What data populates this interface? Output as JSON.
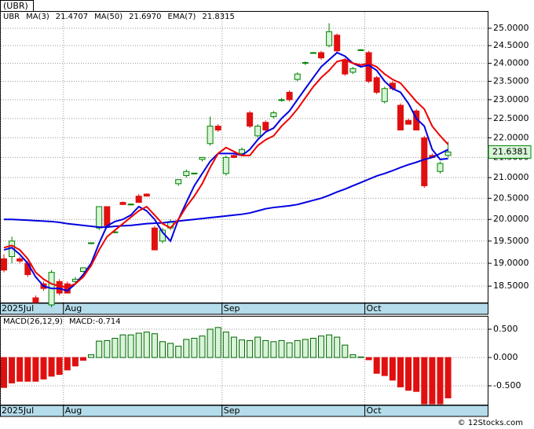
{
  "chart_data": [
    {
      "type": "candlestick",
      "title": "(UBR)",
      "symbol": "UBR",
      "symbol_color": "#008000",
      "categories": [
        "2025Jul",
        null,
        null,
        null,
        null,
        null,
        null,
        null,
        "Aug",
        null,
        null,
        null,
        null,
        null,
        null,
        null,
        null,
        null,
        null,
        null,
        null,
        null,
        null,
        null,
        null,
        null,
        null,
        null,
        "Sep",
        null,
        null,
        null,
        null,
        null,
        null,
        null,
        null,
        null,
        null,
        null,
        null,
        null,
        null,
        null,
        null,
        null,
        "Oct",
        null,
        null,
        null,
        null,
        null,
        null,
        null,
        null,
        null,
        null
      ],
      "open": [
        19.1,
        19.15,
        19.1,
        19.0,
        18.25,
        18.55,
        18.1,
        18.6,
        18.55,
        18.6,
        18.82,
        19.45,
        19.8,
        20.3,
        19.7,
        20.4,
        20.35,
        20.55,
        20.6,
        19.8,
        19.5,
        19.8,
        20.85,
        21.05,
        21.1,
        21.45,
        21.85,
        22.3,
        21.1,
        21.55,
        21.6,
        22.65,
        22.05,
        22.4,
        22.55,
        22.98,
        23.2,
        23.55,
        24.0,
        24.3,
        24.3,
        24.5,
        24.8,
        24.1,
        23.75,
        24.37,
        24.3,
        23.6,
        22.95,
        23.45,
        22.85,
        22.45,
        22.7,
        22.0,
        21.55,
        21.15,
        21.55
      ],
      "high": [
        19.2,
        19.6,
        19.15,
        19.05,
        18.3,
        18.6,
        18.85,
        18.65,
        18.6,
        18.7,
        18.9,
        19.47,
        20.3,
        20.3,
        19.72,
        20.42,
        20.37,
        20.6,
        20.62,
        19.85,
        19.8,
        20.0,
        20.95,
        21.2,
        21.12,
        21.5,
        22.55,
        22.35,
        21.55,
        21.6,
        21.75,
        22.7,
        22.35,
        22.45,
        22.7,
        23.05,
        23.25,
        23.75,
        24.05,
        24.32,
        24.35,
        25.15,
        24.85,
        24.15,
        23.9,
        24.4,
        24.35,
        23.65,
        23.35,
        23.5,
        22.9,
        22.5,
        22.75,
        22.05,
        21.6,
        21.4,
        21.9
      ],
      "low": [
        18.8,
        19.0,
        19.0,
        18.7,
        18.15,
        18.4,
        18.05,
        18.3,
        18.35,
        18.55,
        18.8,
        19.43,
        19.75,
        19.85,
        19.68,
        20.35,
        20.33,
        20.4,
        20.55,
        19.3,
        19.45,
        19.75,
        20.8,
        21.0,
        21.08,
        21.4,
        21.8,
        22.15,
        21.05,
        21.48,
        21.55,
        22.25,
        22.0,
        22.15,
        22.5,
        22.95,
        22.95,
        23.5,
        23.95,
        24.28,
        24.1,
        24.45,
        24.3,
        23.65,
        23.7,
        24.35,
        23.45,
        23.15,
        22.9,
        23.25,
        22.2,
        22.35,
        22.2,
        20.75,
        21.5,
        21.1,
        21.5
      ],
      "close": [
        18.85,
        19.5,
        19.05,
        18.75,
        18.15,
        18.45,
        18.8,
        18.35,
        18.35,
        18.65,
        18.9,
        19.46,
        20.3,
        19.85,
        19.71,
        20.35,
        20.36,
        20.4,
        20.55,
        19.3,
        19.75,
        19.95,
        20.95,
        21.15,
        21.11,
        21.5,
        22.3,
        22.2,
        21.5,
        21.5,
        21.7,
        22.3,
        22.3,
        22.2,
        22.65,
        23.0,
        23.0,
        23.7,
        24.02,
        24.3,
        24.15,
        24.9,
        24.35,
        23.7,
        23.85,
        24.38,
        23.5,
        23.2,
        23.3,
        23.3,
        22.2,
        22.35,
        22.2,
        20.8,
        21.5,
        21.35,
        21.6381
      ],
      "up_color": "#008000",
      "up_fill": "#d8f5d8",
      "down_color": "#e01010",
      "series": [
        {
          "name": "MA(3)",
          "legend_value": "21.4707",
          "color": "#0000e0",
          "values": [
            19.3,
            19.35,
            19.2,
            19.0,
            18.7,
            18.5,
            18.45,
            18.45,
            18.4,
            18.55,
            18.75,
            19.0,
            19.45,
            19.85,
            19.95,
            20.0,
            20.1,
            20.3,
            20.2,
            20.0,
            19.7,
            19.5,
            20.0,
            20.4,
            20.8,
            21.1,
            21.4,
            21.6,
            21.6,
            21.6,
            21.55,
            21.7,
            21.95,
            22.15,
            22.25,
            22.5,
            22.7,
            23.0,
            23.3,
            23.6,
            23.9,
            24.1,
            24.3,
            24.2,
            24.0,
            23.9,
            23.95,
            23.8,
            23.5,
            23.3,
            23.2,
            22.9,
            22.5,
            22.3,
            21.7,
            21.45,
            21.47
          ]
        },
        {
          "name": "MA(50)",
          "legend_value": "21.6970",
          "color": "#0000e0",
          "values": [
            20.0,
            20.0,
            19.99,
            19.98,
            19.97,
            19.96,
            19.95,
            19.93,
            19.9,
            19.88,
            19.86,
            19.84,
            19.82,
            19.82,
            19.84,
            19.85,
            19.86,
            19.88,
            19.9,
            19.91,
            19.92,
            19.94,
            19.96,
            19.98,
            20.0,
            20.02,
            20.04,
            20.06,
            20.08,
            20.1,
            20.12,
            20.15,
            20.2,
            20.25,
            20.28,
            20.3,
            20.32,
            20.35,
            20.4,
            20.45,
            20.5,
            20.57,
            20.65,
            20.72,
            20.8,
            20.88,
            20.96,
            21.04,
            21.1,
            21.17,
            21.25,
            21.32,
            21.38,
            21.45,
            21.5,
            21.6,
            21.7
          ]
        },
        {
          "name": "EMA(7)",
          "legend_value": "21.8315",
          "color": "#ee0000",
          "values": [
            19.35,
            19.4,
            19.3,
            19.1,
            18.8,
            18.65,
            18.55,
            18.5,
            18.48,
            18.55,
            18.7,
            18.95,
            19.3,
            19.6,
            19.75,
            19.9,
            20.05,
            20.2,
            20.3,
            20.1,
            19.9,
            19.8,
            20.0,
            20.3,
            20.55,
            20.85,
            21.25,
            21.6,
            21.75,
            21.65,
            21.55,
            21.55,
            21.8,
            21.95,
            22.05,
            22.3,
            22.5,
            22.75,
            23.05,
            23.35,
            23.6,
            23.8,
            24.05,
            24.1,
            24.0,
            23.95,
            24.0,
            23.9,
            23.7,
            23.55,
            23.45,
            23.2,
            22.95,
            22.75,
            22.3,
            22.05,
            21.83
          ]
        }
      ],
      "last_price": 21.6381,
      "ylim": [
        18.15,
        25.51
      ],
      "log": true,
      "grid": true,
      "yticks": [
        {
          "value": 18.5,
          "label": "18.5000"
        },
        {
          "value": 19,
          "label": "19.0000"
        },
        {
          "value": 19.5,
          "label": "19.5000"
        },
        {
          "value": 20,
          "label": "20.0000"
        },
        {
          "value": 20.5,
          "label": "20.5000"
        },
        {
          "value": 21,
          "label": "21.0000"
        },
        {
          "value": 21.5,
          "label": "21.5000"
        },
        {
          "value": 22,
          "label": "22.0000"
        },
        {
          "value": 22.5,
          "label": "22.5000"
        },
        {
          "value": 23,
          "label": "23.0000"
        },
        {
          "value": 23.5,
          "label": "23.5000"
        },
        {
          "value": 24,
          "label": "24.0000"
        },
        {
          "value": 24.5,
          "label": "24.5000"
        },
        {
          "value": 25,
          "label": "25.0000"
        }
      ]
    },
    {
      "type": "bar",
      "title": "MACD(26,12,9)",
      "annotation": "MACD:-0.714",
      "categories": [
        "2025Jul",
        null,
        null,
        null,
        null,
        null,
        null,
        null,
        "Aug",
        null,
        null,
        null,
        null,
        null,
        null,
        null,
        null,
        null,
        null,
        null,
        null,
        null,
        null,
        null,
        null,
        null,
        null,
        null,
        "Sep",
        null,
        null,
        null,
        null,
        null,
        null,
        null,
        null,
        null,
        null,
        null,
        null,
        null,
        null,
        null,
        null,
        null,
        "Oct",
        null,
        null,
        null,
        null,
        null,
        null,
        null,
        null,
        null,
        null
      ],
      "values": [
        -0.53,
        -0.45,
        -0.42,
        -0.42,
        -0.42,
        -0.38,
        -0.33,
        -0.3,
        -0.22,
        -0.15,
        -0.05,
        0.05,
        0.29,
        0.3,
        0.34,
        0.4,
        0.4,
        0.43,
        0.45,
        0.42,
        0.28,
        0.25,
        0.2,
        0.32,
        0.34,
        0.38,
        0.5,
        0.53,
        0.45,
        0.36,
        0.31,
        0.3,
        0.36,
        0.3,
        0.28,
        0.3,
        0.26,
        0.3,
        0.32,
        0.34,
        0.38,
        0.4,
        0.36,
        0.22,
        0.05,
        0.01,
        -0.04,
        -0.28,
        -0.32,
        -0.4,
        -0.52,
        -0.58,
        -0.6,
        -0.82,
        -0.82,
        -0.82,
        -0.714
      ],
      "up_color": "#006400",
      "up_fill": "#d8f5d8",
      "down_color": "#e01010",
      "ylim": [
        -0.847,
        0.736
      ],
      "grid": true,
      "yticks": [
        {
          "value": -0.5,
          "label": "-0.500"
        },
        {
          "value": 0,
          "label": "0.000"
        },
        {
          "value": 0.5,
          "label": "0.500"
        }
      ]
    }
  ],
  "footer": "© 12Stocks.com"
}
